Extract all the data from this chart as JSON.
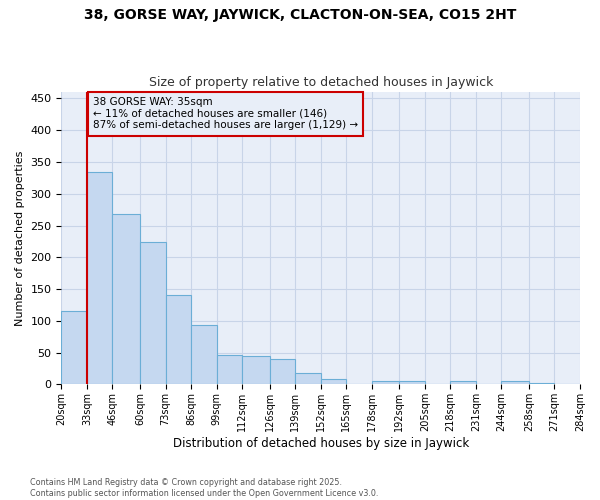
{
  "title_line1": "38, GORSE WAY, JAYWICK, CLACTON-ON-SEA, CO15 2HT",
  "title_line2": "Size of property relative to detached houses in Jaywick",
  "xlabel": "Distribution of detached houses by size in Jaywick",
  "ylabel": "Number of detached properties",
  "bin_edges": [
    20,
    33,
    46,
    60,
    73,
    86,
    99,
    112,
    126,
    139,
    152,
    165,
    178,
    192,
    205,
    218,
    231,
    244,
    258,
    271,
    284
  ],
  "bar_heights": [
    115,
    335,
    268,
    224,
    140,
    94,
    46,
    45,
    40,
    18,
    9,
    0,
    6,
    5,
    0,
    5,
    0,
    6,
    2,
    1
  ],
  "bar_color": "#c5d8f0",
  "bar_edge_color": "#6baed6",
  "grid_color": "#c8d4e8",
  "background_color": "#ffffff",
  "plot_bg_color": "#e8eef8",
  "property_line_x": 33,
  "property_line_color": "#cc0000",
  "annotation_line1": "38 GORSE WAY: 35sqm",
  "annotation_line2": "← 11% of detached houses are smaller (146)",
  "annotation_line3": "87% of semi-detached houses are larger (1,129) →",
  "annotation_box_color": "#cc0000",
  "ylim": [
    0,
    460
  ],
  "yticks": [
    0,
    50,
    100,
    150,
    200,
    250,
    300,
    350,
    400,
    450
  ],
  "footer_text": "Contains HM Land Registry data © Crown copyright and database right 2025.\nContains public sector information licensed under the Open Government Licence v3.0.",
  "tick_labels": [
    "20sqm",
    "33sqm",
    "46sqm",
    "60sqm",
    "73sqm",
    "86sqm",
    "99sqm",
    "112sqm",
    "126sqm",
    "139sqm",
    "152sqm",
    "165sqm",
    "178sqm",
    "192sqm",
    "205sqm",
    "218sqm",
    "231sqm",
    "244sqm",
    "258sqm",
    "271sqm",
    "284sqm"
  ]
}
